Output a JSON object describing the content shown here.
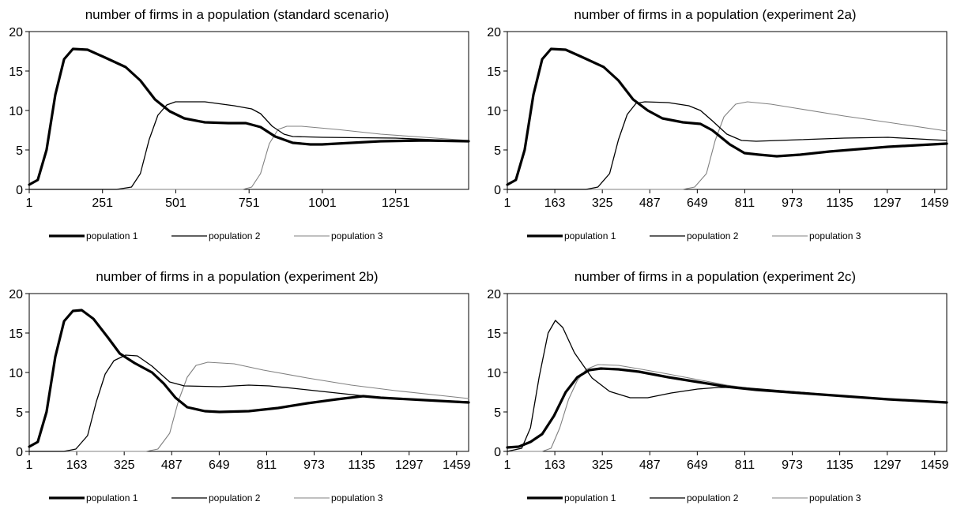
{
  "chart_data": [
    {
      "type": "line",
      "title": "number of firms in a population  (standard scenario)",
      "xlabel": "",
      "ylabel": "",
      "ylim": [
        0,
        20
      ],
      "xlim": [
        1,
        1500
      ],
      "x_ticks": [
        1,
        251,
        501,
        751,
        1001,
        1251
      ],
      "y_ticks": [
        0,
        5,
        10,
        15,
        20
      ],
      "grid": false,
      "legend": "bottom",
      "series": [
        {
          "name": "population 1",
          "points": [
            [
              1,
              0.6
            ],
            [
              30,
              1.2
            ],
            [
              60,
              5
            ],
            [
              90,
              12
            ],
            [
              120,
              16.5
            ],
            [
              150,
              17.8
            ],
            [
              200,
              17.7
            ],
            [
              260,
              16.7
            ],
            [
              330,
              15.5
            ],
            [
              380,
              13.8
            ],
            [
              430,
              11.4
            ],
            [
              480,
              9.9
            ],
            [
              530,
              9.0
            ],
            [
              600,
              8.5
            ],
            [
              680,
              8.4
            ],
            [
              740,
              8.4
            ],
            [
              790,
              7.9
            ],
            [
              840,
              6.7
            ],
            [
              900,
              5.9
            ],
            [
              960,
              5.7
            ],
            [
              1000,
              5.7
            ],
            [
              1100,
              5.9
            ],
            [
              1200,
              6.1
            ],
            [
              1350,
              6.2
            ],
            [
              1500,
              6.1
            ]
          ]
        },
        {
          "name": "population 2",
          "points": [
            [
              1,
              0
            ],
            [
              300,
              0
            ],
            [
              350,
              0.3
            ],
            [
              380,
              2
            ],
            [
              410,
              6.3
            ],
            [
              440,
              9.4
            ],
            [
              470,
              10.7
            ],
            [
              500,
              11.1
            ],
            [
              600,
              11.1
            ],
            [
              700,
              10.6
            ],
            [
              760,
              10.2
            ],
            [
              790,
              9.6
            ],
            [
              830,
              8
            ],
            [
              870,
              7
            ],
            [
              900,
              6.7
            ],
            [
              1000,
              6.6
            ],
            [
              1250,
              6.5
            ],
            [
              1500,
              6.1
            ]
          ]
        },
        {
          "name": "population 3",
          "points": [
            [
              1,
              0
            ],
            [
              730,
              0
            ],
            [
              760,
              0.3
            ],
            [
              790,
              2
            ],
            [
              820,
              5.8
            ],
            [
              850,
              7.6
            ],
            [
              880,
              8
            ],
            [
              930,
              8
            ],
            [
              1050,
              7.6
            ],
            [
              1200,
              7
            ],
            [
              1350,
              6.6
            ],
            [
              1500,
              6.2
            ]
          ]
        }
      ]
    },
    {
      "type": "line",
      "title": "number of firms in a population (experiment 2a)",
      "xlabel": "",
      "ylabel": "",
      "ylim": [
        0,
        20
      ],
      "xlim": [
        1,
        1500
      ],
      "x_ticks": [
        1,
        163,
        325,
        487,
        649,
        811,
        973,
        1135,
        1297,
        1459
      ],
      "y_ticks": [
        0,
        5,
        10,
        15,
        20
      ],
      "grid": false,
      "legend": "bottom",
      "series": [
        {
          "name": "population 1",
          "points": [
            [
              1,
              0.6
            ],
            [
              30,
              1.2
            ],
            [
              60,
              5
            ],
            [
              90,
              12
            ],
            [
              120,
              16.5
            ],
            [
              150,
              17.8
            ],
            [
              200,
              17.7
            ],
            [
              260,
              16.7
            ],
            [
              330,
              15.5
            ],
            [
              380,
              13.8
            ],
            [
              430,
              11.4
            ],
            [
              480,
              10
            ],
            [
              530,
              9
            ],
            [
              600,
              8.5
            ],
            [
              660,
              8.3
            ],
            [
              700,
              7.5
            ],
            [
              760,
              5.7
            ],
            [
              810,
              4.6
            ],
            [
              860,
              4.4
            ],
            [
              920,
              4.2
            ],
            [
              1000,
              4.4
            ],
            [
              1100,
              4.8
            ],
            [
              1200,
              5.1
            ],
            [
              1300,
              5.4
            ],
            [
              1400,
              5.6
            ],
            [
              1500,
              5.8
            ]
          ]
        },
        {
          "name": "population 2",
          "points": [
            [
              1,
              0
            ],
            [
              270,
              0
            ],
            [
              310,
              0.3
            ],
            [
              350,
              2
            ],
            [
              380,
              6.3
            ],
            [
              410,
              9.5
            ],
            [
              440,
              10.9
            ],
            [
              470,
              11.1
            ],
            [
              550,
              11
            ],
            [
              620,
              10.6
            ],
            [
              660,
              10
            ],
            [
              700,
              8.7
            ],
            [
              750,
              7
            ],
            [
              800,
              6.2
            ],
            [
              850,
              6.1
            ],
            [
              1000,
              6.3
            ],
            [
              1150,
              6.5
            ],
            [
              1300,
              6.6
            ],
            [
              1500,
              6.2
            ]
          ]
        },
        {
          "name": "population 3",
          "points": [
            [
              1,
              0
            ],
            [
              600,
              0
            ],
            [
              640,
              0.3
            ],
            [
              680,
              2
            ],
            [
              710,
              6.2
            ],
            [
              740,
              9.2
            ],
            [
              780,
              10.8
            ],
            [
              820,
              11.1
            ],
            [
              900,
              10.8
            ],
            [
              1000,
              10.2
            ],
            [
              1150,
              9.3
            ],
            [
              1300,
              8.5
            ],
            [
              1500,
              7.4
            ]
          ]
        }
      ]
    },
    {
      "type": "line",
      "title": "number of firms in a population (experiment 2b)",
      "xlabel": "",
      "ylabel": "",
      "ylim": [
        0,
        20
      ],
      "xlim": [
        1,
        1500
      ],
      "x_ticks": [
        1,
        163,
        325,
        487,
        649,
        811,
        973,
        1135,
        1297,
        1459
      ],
      "y_ticks": [
        0,
        5,
        10,
        15,
        20
      ],
      "grid": false,
      "legend": "bottom",
      "series": [
        {
          "name": "population 1",
          "points": [
            [
              1,
              0.6
            ],
            [
              30,
              1.2
            ],
            [
              60,
              5
            ],
            [
              90,
              12
            ],
            [
              120,
              16.5
            ],
            [
              150,
              17.8
            ],
            [
              180,
              17.9
            ],
            [
              220,
              16.8
            ],
            [
              270,
              14.4
            ],
            [
              310,
              12.4
            ],
            [
              360,
              11.2
            ],
            [
              420,
              10
            ],
            [
              460,
              8.6
            ],
            [
              500,
              6.8
            ],
            [
              540,
              5.6
            ],
            [
              600,
              5.1
            ],
            [
              650,
              5
            ],
            [
              750,
              5.1
            ],
            [
              850,
              5.5
            ],
            [
              950,
              6.1
            ],
            [
              1050,
              6.6
            ],
            [
              1140,
              7
            ],
            [
              1200,
              6.8
            ],
            [
              1350,
              6.5
            ],
            [
              1500,
              6.2
            ]
          ]
        },
        {
          "name": "population 2",
          "points": [
            [
              1,
              0
            ],
            [
              120,
              0
            ],
            [
              160,
              0.3
            ],
            [
              200,
              2
            ],
            [
              230,
              6.3
            ],
            [
              260,
              9.8
            ],
            [
              290,
              11.5
            ],
            [
              330,
              12.2
            ],
            [
              370,
              12.1
            ],
            [
              420,
              10.8
            ],
            [
              480,
              8.8
            ],
            [
              530,
              8.3
            ],
            [
              650,
              8.2
            ],
            [
              750,
              8.4
            ],
            [
              820,
              8.3
            ],
            [
              900,
              8
            ],
            [
              1000,
              7.6
            ],
            [
              1150,
              7
            ],
            [
              1300,
              6.6
            ],
            [
              1500,
              6.3
            ]
          ]
        },
        {
          "name": "population 3",
          "points": [
            [
              1,
              0
            ],
            [
              400,
              0
            ],
            [
              440,
              0.3
            ],
            [
              480,
              2.3
            ],
            [
              510,
              6.4
            ],
            [
              540,
              9.4
            ],
            [
              570,
              10.9
            ],
            [
              610,
              11.3
            ],
            [
              700,
              11.1
            ],
            [
              800,
              10.3
            ],
            [
              950,
              9.3
            ],
            [
              1100,
              8.4
            ],
            [
              1250,
              7.7
            ],
            [
              1400,
              7.1
            ],
            [
              1500,
              6.7
            ]
          ]
        }
      ]
    },
    {
      "type": "line",
      "title": "number of firms in a population (experiment 2c)",
      "xlabel": "",
      "ylabel": "",
      "ylim": [
        0,
        20
      ],
      "xlim": [
        1,
        1500
      ],
      "x_ticks": [
        1,
        163,
        325,
        487,
        649,
        811,
        973,
        1135,
        1297,
        1459
      ],
      "y_ticks": [
        0,
        5,
        10,
        15,
        20
      ],
      "grid": false,
      "legend": "bottom",
      "series": [
        {
          "name": "population 1",
          "points": [
            [
              1,
              0.5
            ],
            [
              40,
              0.6
            ],
            [
              80,
              1.2
            ],
            [
              120,
              2.2
            ],
            [
              160,
              4.5
            ],
            [
              200,
              7.5
            ],
            [
              240,
              9.4
            ],
            [
              280,
              10.3
            ],
            [
              320,
              10.5
            ],
            [
              380,
              10.4
            ],
            [
              450,
              10.1
            ],
            [
              550,
              9.4
            ],
            [
              650,
              8.8
            ],
            [
              750,
              8.2
            ],
            [
              850,
              7.8
            ],
            [
              1000,
              7.4
            ],
            [
              1150,
              7
            ],
            [
              1300,
              6.6
            ],
            [
              1500,
              6.2
            ]
          ]
        },
        {
          "name": "population 2",
          "points": [
            [
              1,
              0
            ],
            [
              50,
              0.4
            ],
            [
              80,
              3
            ],
            [
              110,
              9.5
            ],
            [
              140,
              15
            ],
            [
              165,
              16.6
            ],
            [
              190,
              15.7
            ],
            [
              230,
              12.5
            ],
            [
              290,
              9.3
            ],
            [
              350,
              7.6
            ],
            [
              420,
              6.8
            ],
            [
              480,
              6.8
            ],
            [
              560,
              7.4
            ],
            [
              650,
              7.9
            ],
            [
              720,
              8.1
            ],
            [
              800,
              8.1
            ],
            [
              900,
              7.8
            ],
            [
              1000,
              7.5
            ],
            [
              1150,
              7
            ],
            [
              1300,
              6.6
            ],
            [
              1500,
              6.2
            ]
          ]
        },
        {
          "name": "population 3",
          "points": [
            [
              1,
              0
            ],
            [
              120,
              0
            ],
            [
              150,
              0.4
            ],
            [
              180,
              3
            ],
            [
              210,
              6.6
            ],
            [
              240,
              9
            ],
            [
              270,
              10.4
            ],
            [
              310,
              11
            ],
            [
              380,
              10.9
            ],
            [
              460,
              10.4
            ],
            [
              550,
              9.8
            ],
            [
              650,
              9.1
            ],
            [
              750,
              8.4
            ],
            [
              850,
              7.9
            ],
            [
              1000,
              7.4
            ],
            [
              1150,
              7
            ],
            [
              1300,
              6.6
            ],
            [
              1500,
              6.2
            ]
          ]
        }
      ]
    }
  ],
  "styles": {
    "population 1": {
      "color": "#000000",
      "width": 3.2
    },
    "population 2": {
      "color": "#000000",
      "width": 1.3
    },
    "population 3": {
      "color": "#808080",
      "width": 1.1
    },
    "axis_color": "#000000"
  }
}
